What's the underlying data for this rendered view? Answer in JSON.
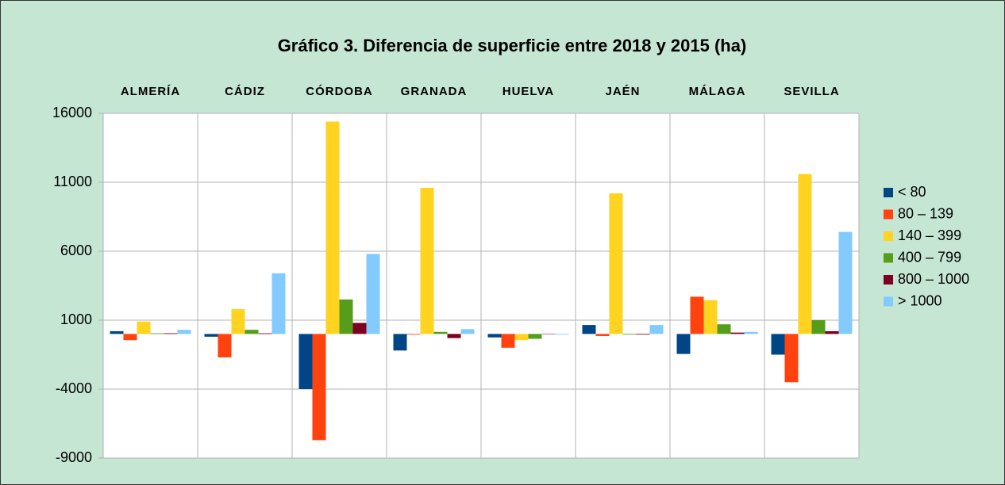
{
  "chart_data": {
    "type": "bar",
    "title": "Gráfico 3. Diferencia de superficie entre 2018 y 2015 (ha)",
    "categories": [
      "ALMERÍA",
      "CÁDIZ",
      "CÓRDOBA",
      "GRANADA",
      "HUELVA",
      "JAÉN",
      "MÁLAGA",
      "SEVILLA"
    ],
    "series": [
      {
        "name": "< 80",
        "color": "#004586",
        "values": [
          200,
          -200,
          -4000,
          -1200,
          -250,
          650,
          -1450,
          -1500
        ]
      },
      {
        "name": "80 – 139",
        "color": "#ff420e",
        "values": [
          -450,
          -1700,
          -7700,
          -50,
          -1000,
          -150,
          2700,
          -3500
        ]
      },
      {
        "name": "140 – 399",
        "color": "#ffd320",
        "values": [
          900,
          1800,
          15400,
          10600,
          -450,
          10200,
          2450,
          11600
        ]
      },
      {
        "name": "400 – 799",
        "color": "#579d1c",
        "values": [
          50,
          300,
          2500,
          150,
          -350,
          -50,
          700,
          1000
        ]
      },
      {
        "name": "800 – 1000",
        "color": "#7e0021",
        "values": [
          50,
          50,
          800,
          -300,
          0,
          -50,
          100,
          200
        ]
      },
      {
        "name": "> 1000",
        "color": "#83caff",
        "values": [
          300,
          4400,
          5800,
          350,
          -50,
          650,
          150,
          7400
        ]
      }
    ],
    "ylim": [
      -9000,
      16000
    ],
    "yticks": [
      -9000,
      -4000,
      1000,
      6000,
      11000,
      16000
    ],
    "grid": true,
    "legend": "right"
  }
}
